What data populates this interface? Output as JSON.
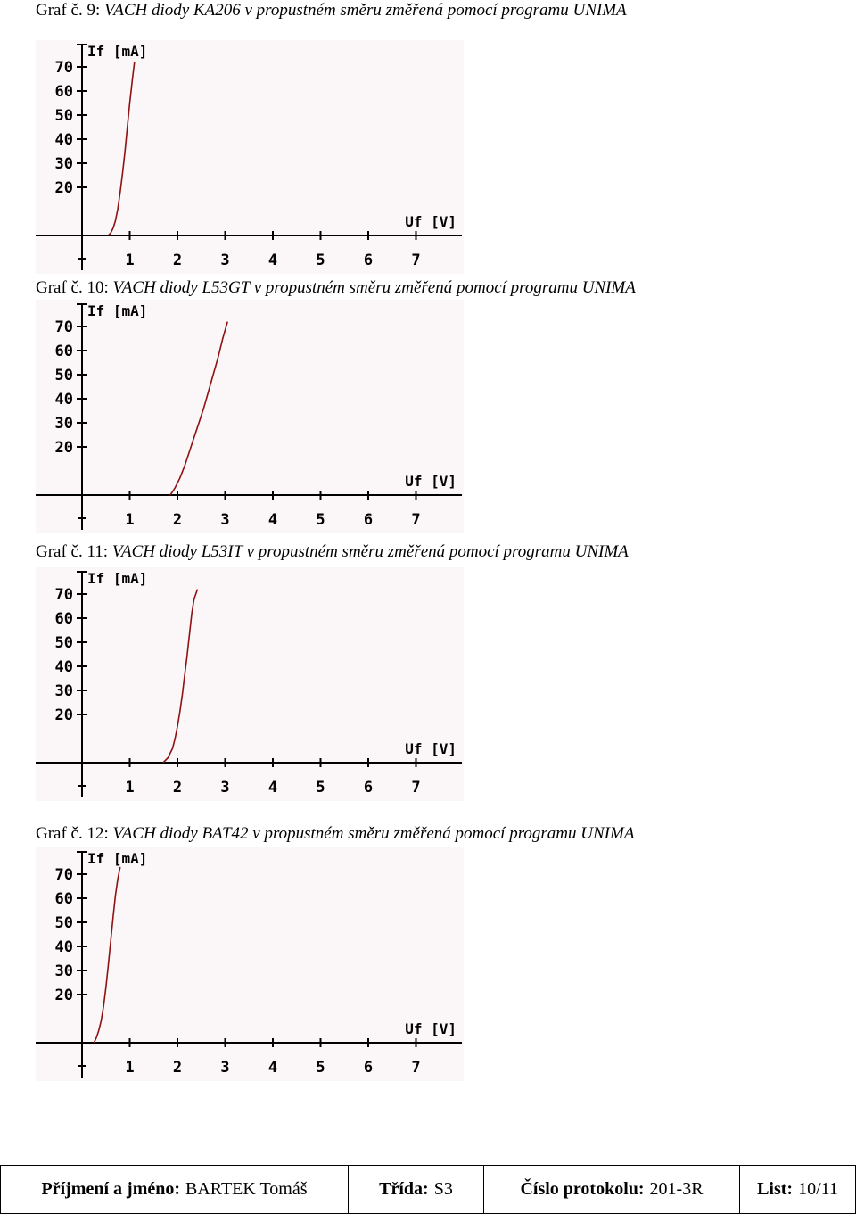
{
  "charts": [
    {
      "caption": {
        "lead": "Graf č. 9:",
        "title": "VACH diody KA206 v propustném směru změřená pomocí programu UNIMA"
      },
      "chart_data": {
        "type": "line",
        "ylabel": "If [mA]",
        "xlabel": "Uf [V]",
        "x_ticks": [
          "1",
          "2",
          "3",
          "4",
          "5",
          "6",
          "7"
        ],
        "y_ticks": [
          "20",
          "30",
          "40",
          "50",
          "60",
          "70"
        ],
        "xlim": [
          0,
          8
        ],
        "ylim": [
          0,
          75
        ],
        "series": [
          {
            "x": [
              0.55,
              0.6,
              0.65,
              0.7,
              0.75,
              0.8,
              0.85,
              0.9,
              0.95,
              1.0,
              1.05,
              1.1
            ],
            "y": [
              0,
              1,
              3,
              6,
              11,
              18,
              26,
              35,
              45,
              55,
              64,
              72
            ]
          }
        ]
      }
    },
    {
      "caption": {
        "lead": "Graf č. 10:",
        "title": "VACH diody L53GT v propustném směru změřená pomocí programu UNIMA"
      },
      "chart_data": {
        "type": "line",
        "ylabel": "If [mA]",
        "xlabel": "Uf [V]",
        "x_ticks": [
          "1",
          "2",
          "3",
          "4",
          "5",
          "6",
          "7"
        ],
        "y_ticks": [
          "20",
          "30",
          "40",
          "50",
          "60",
          "70"
        ],
        "xlim": [
          0,
          8
        ],
        "ylim": [
          0,
          75
        ],
        "series": [
          {
            "x": [
              1.85,
              1.95,
              2.05,
              2.15,
              2.25,
              2.35,
              2.45,
              2.55,
              2.65,
              2.75,
              2.85,
              2.95,
              3.05
            ],
            "y": [
              0,
              3,
              7,
              12,
              18,
              24,
              30,
              36,
              43,
              50,
              57,
              65,
              72
            ]
          }
        ]
      }
    },
    {
      "caption": {
        "lead": "Graf č. 11:",
        "title": "VACH diody L53IT v propustném směru změřená pomocí programu UNIMA"
      },
      "chart_data": {
        "type": "line",
        "ylabel": "If [mA]",
        "xlabel": "Uf [V]",
        "x_ticks": [
          "1",
          "2",
          "3",
          "4",
          "5",
          "6",
          "7"
        ],
        "y_ticks": [
          "20",
          "30",
          "40",
          "50",
          "60",
          "70"
        ],
        "xlim": [
          0,
          8
        ],
        "ylim": [
          0,
          75
        ],
        "series": [
          {
            "x": [
              1.7,
              1.8,
              1.9,
              1.95,
              2.0,
              2.05,
              2.1,
              2.15,
              2.2,
              2.25,
              2.3,
              2.35,
              2.42
            ],
            "y": [
              0,
              2,
              6,
              10,
              15,
              21,
              28,
              36,
              44,
              53,
              62,
              68,
              72
            ]
          }
        ]
      }
    },
    {
      "caption": {
        "lead": "Graf č. 12:",
        "title": "VACH diody BAT42 v propustném směru změřená pomocí programu UNIMA"
      },
      "chart_data": {
        "type": "line",
        "ylabel": "If [mA]",
        "xlabel": "Uf [V]",
        "x_ticks": [
          "1",
          "2",
          "3",
          "4",
          "5",
          "6",
          "7"
        ],
        "y_ticks": [
          "20",
          "30",
          "40",
          "50",
          "60",
          "70"
        ],
        "xlim": [
          0,
          8
        ],
        "ylim": [
          0,
          75
        ],
        "series": [
          {
            "x": [
              0.25,
              0.3,
              0.35,
              0.4,
              0.45,
              0.5,
              0.55,
              0.6,
              0.65,
              0.7,
              0.75,
              0.8
            ],
            "y": [
              0,
              2,
              5,
              9,
              15,
              23,
              32,
              42,
              52,
              61,
              68,
              73
            ]
          }
        ]
      }
    }
  ],
  "footer": {
    "name_label": "Příjmení a jméno:",
    "name_value": "BARTEK Tomáš",
    "class_label": "Třída:",
    "class_value": "S3",
    "protocol_label": "Číslo protokolu:",
    "protocol_value": "201-3R",
    "page_label": "List:",
    "page_value": "10/11"
  }
}
